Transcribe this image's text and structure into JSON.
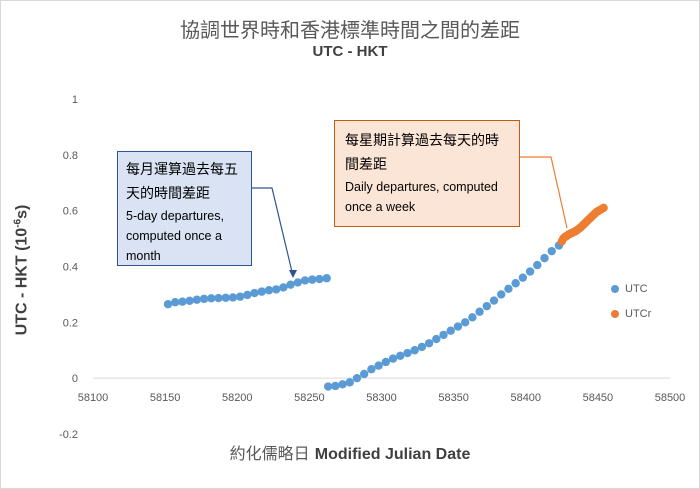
{
  "title": "協調世界時和香港標準時間之間的差距",
  "subtitle": "UTC - HKT",
  "xlabel_zh": "約化儒略日",
  "xlabel_en": "Modified Julian Date",
  "ylabel": "UTC - HKT (10",
  "ylabel_exp": "-6",
  "ylabel_end": "s)",
  "callout_monthly": {
    "zh": "每月運算過去每五天的時間差距",
    "en": "5-day departures, computed once a month"
  },
  "callout_weekly": {
    "zh": "每星期計算過去每天的時間差距",
    "en": "Daily departures, computed once a week"
  },
  "colors": {
    "utc": "#5b9bd5",
    "utcr": "#ed7d31",
    "callout_blue_line": "#2e5496",
    "callout_orange_line": "#ed7d31"
  },
  "chart_data": {
    "type": "scatter",
    "xlim": [
      58100,
      58500
    ],
    "ylim": [
      -0.2,
      1
    ],
    "xticks": [
      58100,
      58150,
      58200,
      58250,
      58300,
      58350,
      58400,
      58450,
      58500
    ],
    "yticks": [
      1,
      0.8,
      0.6,
      0.4,
      0.2,
      0,
      -0.2
    ],
    "ytick_labels": [
      "1",
      "0.8",
      "0.6",
      "0.4",
      "0.2",
      "0",
      "-0.2"
    ],
    "grid": false,
    "legend_position": "right",
    "series": [
      {
        "name": "UTC",
        "x": [
          58152,
          58157,
          58162,
          58167,
          58172,
          58177,
          58182,
          58187,
          58192,
          58197,
          58202,
          58207,
          58212,
          58217,
          58222,
          58227,
          58232,
          58237,
          58242,
          58247,
          58252,
          58257,
          58262,
          58263,
          58268,
          58273,
          58278,
          58283,
          58288,
          58293,
          58298,
          58303,
          58308,
          58313,
          58318,
          58323,
          58328,
          58333,
          58338,
          58343,
          58348,
          58353,
          58358,
          58363,
          58368,
          58373,
          58378,
          58383,
          58388,
          58393,
          58398,
          58403,
          58408,
          58413,
          58418,
          58423
        ],
        "y": [
          0.265,
          0.272,
          0.274,
          0.277,
          0.281,
          0.284,
          0.286,
          0.287,
          0.288,
          0.289,
          0.292,
          0.298,
          0.305,
          0.31,
          0.315,
          0.318,
          0.325,
          0.335,
          0.343,
          0.35,
          0.353,
          0.355,
          0.358,
          -0.03,
          -0.028,
          -0.022,
          -0.015,
          0.0,
          0.015,
          0.032,
          0.045,
          0.058,
          0.07,
          0.08,
          0.09,
          0.1,
          0.112,
          0.125,
          0.14,
          0.155,
          0.17,
          0.185,
          0.2,
          0.218,
          0.238,
          0.258,
          0.278,
          0.3,
          0.32,
          0.34,
          0.36,
          0.382,
          0.405,
          0.43,
          0.455,
          0.475
        ]
      },
      {
        "name": "UTCr",
        "x": [
          58425,
          58426,
          58427,
          58428,
          58429,
          58430,
          58431,
          58432,
          58433,
          58434,
          58435,
          58436,
          58437,
          58438,
          58439,
          58440,
          58441,
          58442,
          58443,
          58444,
          58445,
          58446,
          58447,
          58448,
          58449,
          58450,
          58451,
          58452,
          58453,
          58454
        ],
        "y": [
          0.49,
          0.5,
          0.505,
          0.508,
          0.512,
          0.515,
          0.518,
          0.52,
          0.523,
          0.525,
          0.528,
          0.532,
          0.536,
          0.54,
          0.545,
          0.55,
          0.555,
          0.56,
          0.565,
          0.57,
          0.575,
          0.58,
          0.585,
          0.59,
          0.595,
          0.598,
          0.601,
          0.604,
          0.607,
          0.61
        ]
      }
    ]
  }
}
